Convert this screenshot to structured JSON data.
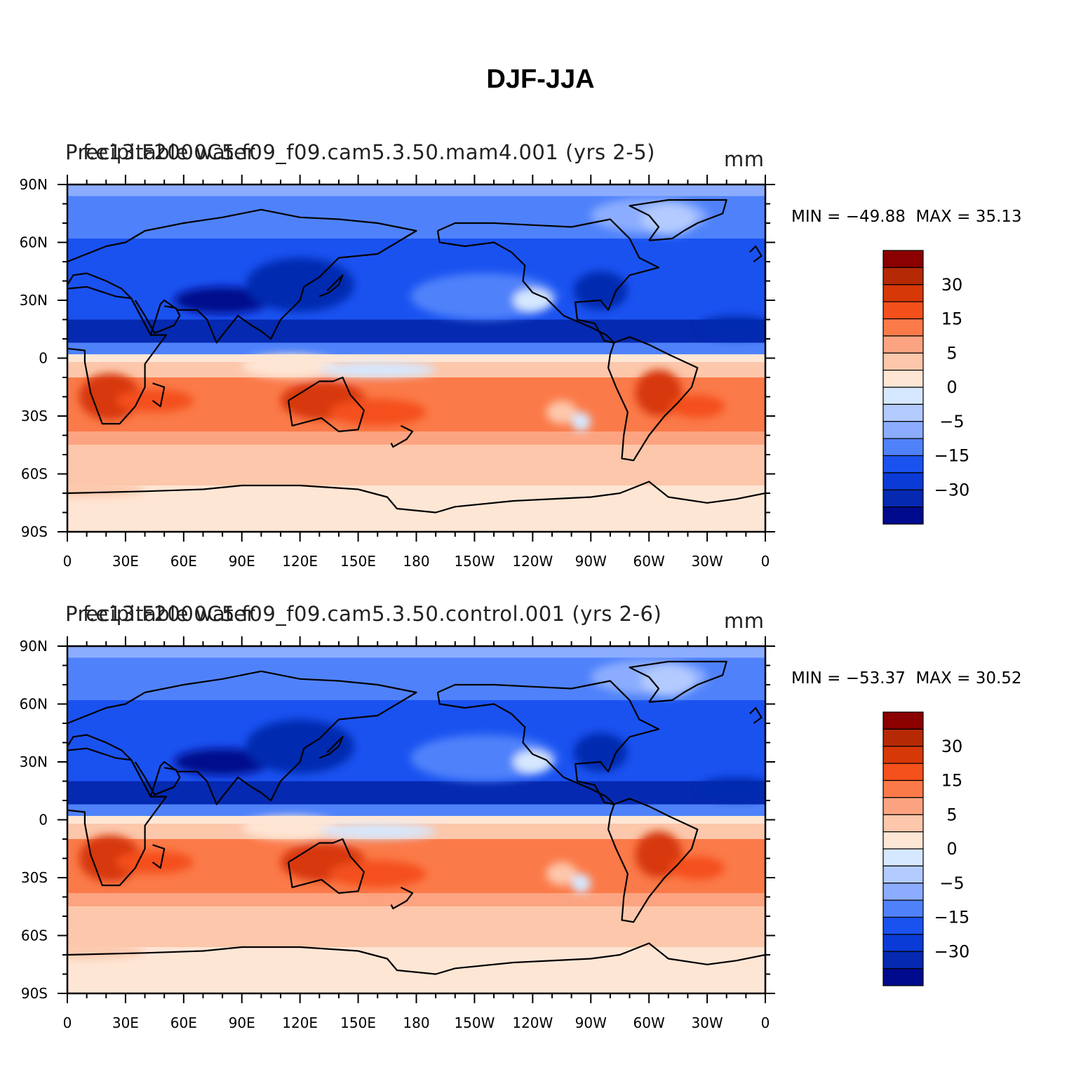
{
  "figure": {
    "title": "DJF-JJA"
  },
  "panels": [
    {
      "variable_label": "Precipitable water",
      "case_label": "f.e13.F2000C5.f09_f09.cam5.3.50.mam4.001 (yrs 2-5)",
      "units": "mm",
      "min_label": "MIN = −49.88",
      "max_label": "MAX =   35.13"
    },
    {
      "variable_label": "Precipitable water",
      "case_label": "f.e13.F2000C5.f09_f09.cam5.3.50.control.001 (yrs 2-6)",
      "units": "mm",
      "min_label": "MIN = −53.37",
      "max_label": "MAX =   30.52"
    }
  ],
  "axes": {
    "lat_labels": [
      "90N",
      "60N",
      "30N",
      "0",
      "30S",
      "60S",
      "90S"
    ],
    "lon_labels": [
      "0",
      "30E",
      "60E",
      "90E",
      "120E",
      "150E",
      "180",
      "150W",
      "120W",
      "90W",
      "60W",
      "30W",
      "0"
    ]
  },
  "colorbar": {
    "labels": [
      "30",
      "15",
      "5",
      "0",
      "−5",
      "−15",
      "−30"
    ],
    "colors_top_to_bottom": [
      "#8b0000",
      "#b52a05",
      "#d73808",
      "#f4501c",
      "#fb7a49",
      "#fca481",
      "#fcc7ab",
      "#fee6d5",
      "#d6e8ff",
      "#b3cbff",
      "#8cadff",
      "#4f82fa",
      "#1a52f0",
      "#0a3bd6",
      "#0529b0",
      "#000a8c"
    ]
  },
  "palette": {
    "neg_strong": "#0529b0",
    "neg_mid": "#1a52f0",
    "neg_light": "#4f82fa",
    "neg_pale": "#8cadff",
    "neg_faint": "#d6e8ff",
    "pos_faint": "#fee6d5",
    "pos_light": "#fcc7ab",
    "pos_mid": "#fca481",
    "pos_strong": "#fb7a49",
    "pos_deep": "#d73808"
  }
}
